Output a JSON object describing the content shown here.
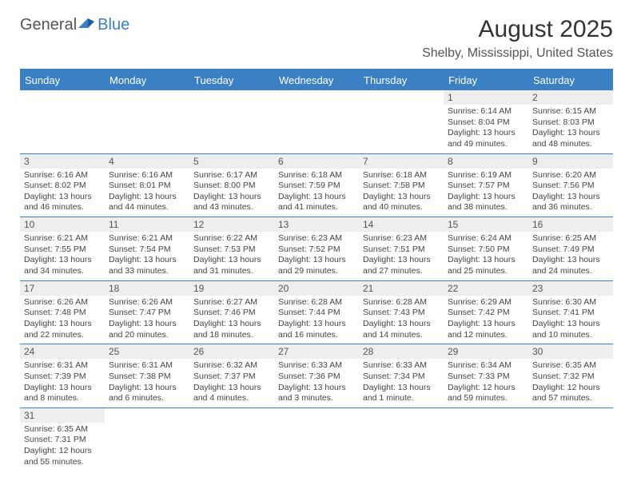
{
  "logo": {
    "general": "General",
    "blue": "Blue"
  },
  "title": "August 2025",
  "location": "Shelby, Mississippi, United States",
  "colors": {
    "header_bg": "#3b7fc4",
    "header_text": "#ffffff",
    "daynum_bg": "#eeeeee",
    "border": "#3b7fc4",
    "text": "#444444",
    "background": "#ffffff"
  },
  "day_names": [
    "Sunday",
    "Monday",
    "Tuesday",
    "Wednesday",
    "Thursday",
    "Friday",
    "Saturday"
  ],
  "weeks": [
    [
      {
        "n": "",
        "sr": "",
        "ss": "",
        "dl": ""
      },
      {
        "n": "",
        "sr": "",
        "ss": "",
        "dl": ""
      },
      {
        "n": "",
        "sr": "",
        "ss": "",
        "dl": ""
      },
      {
        "n": "",
        "sr": "",
        "ss": "",
        "dl": ""
      },
      {
        "n": "",
        "sr": "",
        "ss": "",
        "dl": ""
      },
      {
        "n": "1",
        "sr": "Sunrise: 6:14 AM",
        "ss": "Sunset: 8:04 PM",
        "dl": "Daylight: 13 hours and 49 minutes."
      },
      {
        "n": "2",
        "sr": "Sunrise: 6:15 AM",
        "ss": "Sunset: 8:03 PM",
        "dl": "Daylight: 13 hours and 48 minutes."
      }
    ],
    [
      {
        "n": "3",
        "sr": "Sunrise: 6:16 AM",
        "ss": "Sunset: 8:02 PM",
        "dl": "Daylight: 13 hours and 46 minutes."
      },
      {
        "n": "4",
        "sr": "Sunrise: 6:16 AM",
        "ss": "Sunset: 8:01 PM",
        "dl": "Daylight: 13 hours and 44 minutes."
      },
      {
        "n": "5",
        "sr": "Sunrise: 6:17 AM",
        "ss": "Sunset: 8:00 PM",
        "dl": "Daylight: 13 hours and 43 minutes."
      },
      {
        "n": "6",
        "sr": "Sunrise: 6:18 AM",
        "ss": "Sunset: 7:59 PM",
        "dl": "Daylight: 13 hours and 41 minutes."
      },
      {
        "n": "7",
        "sr": "Sunrise: 6:18 AM",
        "ss": "Sunset: 7:58 PM",
        "dl": "Daylight: 13 hours and 40 minutes."
      },
      {
        "n": "8",
        "sr": "Sunrise: 6:19 AM",
        "ss": "Sunset: 7:57 PM",
        "dl": "Daylight: 13 hours and 38 minutes."
      },
      {
        "n": "9",
        "sr": "Sunrise: 6:20 AM",
        "ss": "Sunset: 7:56 PM",
        "dl": "Daylight: 13 hours and 36 minutes."
      }
    ],
    [
      {
        "n": "10",
        "sr": "Sunrise: 6:21 AM",
        "ss": "Sunset: 7:55 PM",
        "dl": "Daylight: 13 hours and 34 minutes."
      },
      {
        "n": "11",
        "sr": "Sunrise: 6:21 AM",
        "ss": "Sunset: 7:54 PM",
        "dl": "Daylight: 13 hours and 33 minutes."
      },
      {
        "n": "12",
        "sr": "Sunrise: 6:22 AM",
        "ss": "Sunset: 7:53 PM",
        "dl": "Daylight: 13 hours and 31 minutes."
      },
      {
        "n": "13",
        "sr": "Sunrise: 6:23 AM",
        "ss": "Sunset: 7:52 PM",
        "dl": "Daylight: 13 hours and 29 minutes."
      },
      {
        "n": "14",
        "sr": "Sunrise: 6:23 AM",
        "ss": "Sunset: 7:51 PM",
        "dl": "Daylight: 13 hours and 27 minutes."
      },
      {
        "n": "15",
        "sr": "Sunrise: 6:24 AM",
        "ss": "Sunset: 7:50 PM",
        "dl": "Daylight: 13 hours and 25 minutes."
      },
      {
        "n": "16",
        "sr": "Sunrise: 6:25 AM",
        "ss": "Sunset: 7:49 PM",
        "dl": "Daylight: 13 hours and 24 minutes."
      }
    ],
    [
      {
        "n": "17",
        "sr": "Sunrise: 6:26 AM",
        "ss": "Sunset: 7:48 PM",
        "dl": "Daylight: 13 hours and 22 minutes."
      },
      {
        "n": "18",
        "sr": "Sunrise: 6:26 AM",
        "ss": "Sunset: 7:47 PM",
        "dl": "Daylight: 13 hours and 20 minutes."
      },
      {
        "n": "19",
        "sr": "Sunrise: 6:27 AM",
        "ss": "Sunset: 7:46 PM",
        "dl": "Daylight: 13 hours and 18 minutes."
      },
      {
        "n": "20",
        "sr": "Sunrise: 6:28 AM",
        "ss": "Sunset: 7:44 PM",
        "dl": "Daylight: 13 hours and 16 minutes."
      },
      {
        "n": "21",
        "sr": "Sunrise: 6:28 AM",
        "ss": "Sunset: 7:43 PM",
        "dl": "Daylight: 13 hours and 14 minutes."
      },
      {
        "n": "22",
        "sr": "Sunrise: 6:29 AM",
        "ss": "Sunset: 7:42 PM",
        "dl": "Daylight: 13 hours and 12 minutes."
      },
      {
        "n": "23",
        "sr": "Sunrise: 6:30 AM",
        "ss": "Sunset: 7:41 PM",
        "dl": "Daylight: 13 hours and 10 minutes."
      }
    ],
    [
      {
        "n": "24",
        "sr": "Sunrise: 6:31 AM",
        "ss": "Sunset: 7:39 PM",
        "dl": "Daylight: 13 hours and 8 minutes."
      },
      {
        "n": "25",
        "sr": "Sunrise: 6:31 AM",
        "ss": "Sunset: 7:38 PM",
        "dl": "Daylight: 13 hours and 6 minutes."
      },
      {
        "n": "26",
        "sr": "Sunrise: 6:32 AM",
        "ss": "Sunset: 7:37 PM",
        "dl": "Daylight: 13 hours and 4 minutes."
      },
      {
        "n": "27",
        "sr": "Sunrise: 6:33 AM",
        "ss": "Sunset: 7:36 PM",
        "dl": "Daylight: 13 hours and 3 minutes."
      },
      {
        "n": "28",
        "sr": "Sunrise: 6:33 AM",
        "ss": "Sunset: 7:34 PM",
        "dl": "Daylight: 13 hours and 1 minute."
      },
      {
        "n": "29",
        "sr": "Sunrise: 6:34 AM",
        "ss": "Sunset: 7:33 PM",
        "dl": "Daylight: 12 hours and 59 minutes."
      },
      {
        "n": "30",
        "sr": "Sunrise: 6:35 AM",
        "ss": "Sunset: 7:32 PM",
        "dl": "Daylight: 12 hours and 57 minutes."
      }
    ],
    [
      {
        "n": "31",
        "sr": "Sunrise: 6:35 AM",
        "ss": "Sunset: 7:31 PM",
        "dl": "Daylight: 12 hours and 55 minutes."
      },
      {
        "n": "",
        "sr": "",
        "ss": "",
        "dl": ""
      },
      {
        "n": "",
        "sr": "",
        "ss": "",
        "dl": ""
      },
      {
        "n": "",
        "sr": "",
        "ss": "",
        "dl": ""
      },
      {
        "n": "",
        "sr": "",
        "ss": "",
        "dl": ""
      },
      {
        "n": "",
        "sr": "",
        "ss": "",
        "dl": ""
      },
      {
        "n": "",
        "sr": "",
        "ss": "",
        "dl": ""
      }
    ]
  ]
}
